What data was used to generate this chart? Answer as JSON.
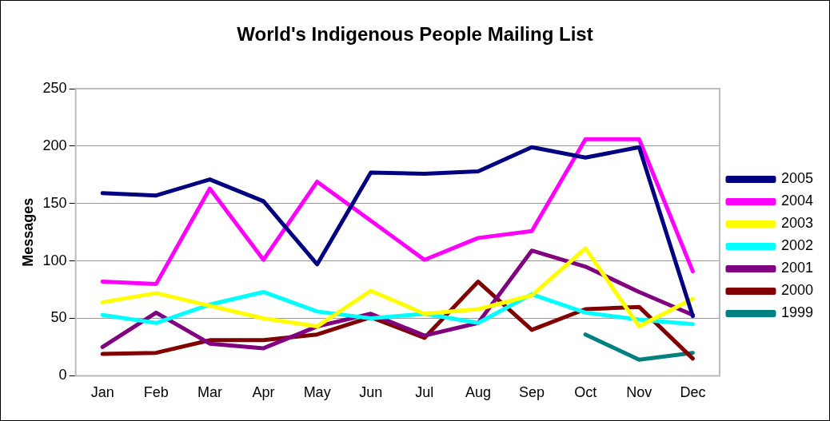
{
  "chart_data": {
    "type": "line",
    "title": "World's Indigenous People Mailing List",
    "ylabel": "Messages",
    "categories": [
      "Jan",
      "Feb",
      "Mar",
      "Apr",
      "May",
      "Jun",
      "Jul",
      "Aug",
      "Sep",
      "Oct",
      "Nov",
      "Dec"
    ],
    "series": [
      {
        "name": "2005",
        "color": "#000080",
        "values": [
          159,
          157,
          171,
          152,
          97,
          177,
          176,
          178,
          199,
          190,
          199,
          52
        ]
      },
      {
        "name": "2004",
        "color": "#ff00ff",
        "values": [
          82,
          80,
          163,
          101,
          169,
          135,
          101,
          120,
          126,
          206,
          206,
          91
        ]
      },
      {
        "name": "2003",
        "color": "#ffff00",
        "values": [
          64,
          72,
          61,
          50,
          43,
          74,
          54,
          58,
          70,
          111,
          43,
          67
        ]
      },
      {
        "name": "2002",
        "color": "#00ffff",
        "values": [
          53,
          46,
          62,
          73,
          56,
          50,
          54,
          46,
          71,
          55,
          49,
          45
        ]
      },
      {
        "name": "2001",
        "color": "#800080",
        "values": [
          25,
          55,
          28,
          24,
          43,
          54,
          35,
          46,
          109,
          95,
          73,
          53
        ]
      },
      {
        "name": "2000",
        "color": "#800000",
        "values": [
          19,
          20,
          31,
          31,
          36,
          51,
          33,
          82,
          40,
          58,
          60,
          15
        ]
      },
      {
        "name": "1999",
        "color": "#008080",
        "values": [
          null,
          null,
          null,
          null,
          null,
          null,
          null,
          null,
          null,
          36,
          14,
          20
        ]
      }
    ],
    "ylim": [
      0,
      250
    ],
    "yticks": [
      0,
      50,
      100,
      150,
      200,
      250
    ],
    "grid": "y",
    "legend": "right",
    "marker": "none",
    "line_style": "solid"
  }
}
